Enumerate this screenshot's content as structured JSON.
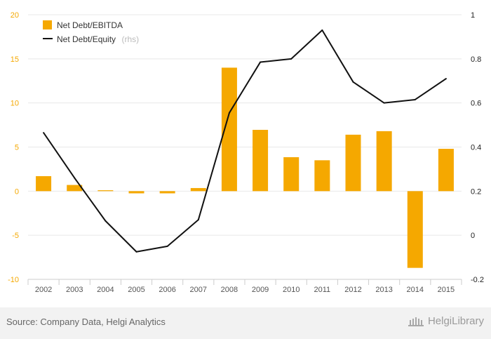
{
  "chart_data": {
    "type": "bar+line",
    "categories": [
      "2002",
      "2003",
      "2004",
      "2005",
      "2006",
      "2007",
      "2008",
      "2009",
      "2010",
      "2011",
      "2012",
      "2013",
      "2014",
      "2015"
    ],
    "series": [
      {
        "name": "Net Debt/EBITDA",
        "type": "bar",
        "axis": "left",
        "values": [
          1.7,
          0.7,
          0.1,
          -0.25,
          -0.25,
          0.35,
          14.0,
          6.95,
          3.85,
          3.5,
          6.4,
          6.8,
          -8.7,
          4.8
        ]
      },
      {
        "name": "Net Debt/Equity",
        "type": "line",
        "axis": "right",
        "legend_note": "(rhs)",
        "values": [
          0.465,
          0.26,
          0.065,
          -0.075,
          -0.05,
          0.07,
          0.555,
          0.785,
          0.8,
          0.93,
          0.695,
          0.6,
          0.615,
          0.71
        ]
      }
    ],
    "y_left": {
      "ticks": [
        -10,
        -5,
        0,
        5,
        10,
        15,
        20
      ],
      "range": [
        -10,
        20
      ]
    },
    "y_right": {
      "ticks": [
        -0.2,
        0,
        0.2,
        0.4,
        0.6,
        0.8,
        1
      ],
      "tick_labels": [
        "-0.2",
        "0",
        "0.2",
        "0.4",
        "0.6",
        "0.8",
        "1"
      ],
      "range": [
        -0.2,
        1
      ]
    },
    "grid": true,
    "legend_position": "top-left"
  },
  "colors": {
    "bar": "#f5a800",
    "line": "#111111",
    "left_ticks": "#f5a800",
    "right_ticks": "#222222",
    "grid": "#e8e8e8"
  },
  "footer": {
    "source": "Source: Company Data, Helgi Analytics",
    "brand": "HelgiLibrary",
    "brand_icon": "library-building-icon"
  }
}
